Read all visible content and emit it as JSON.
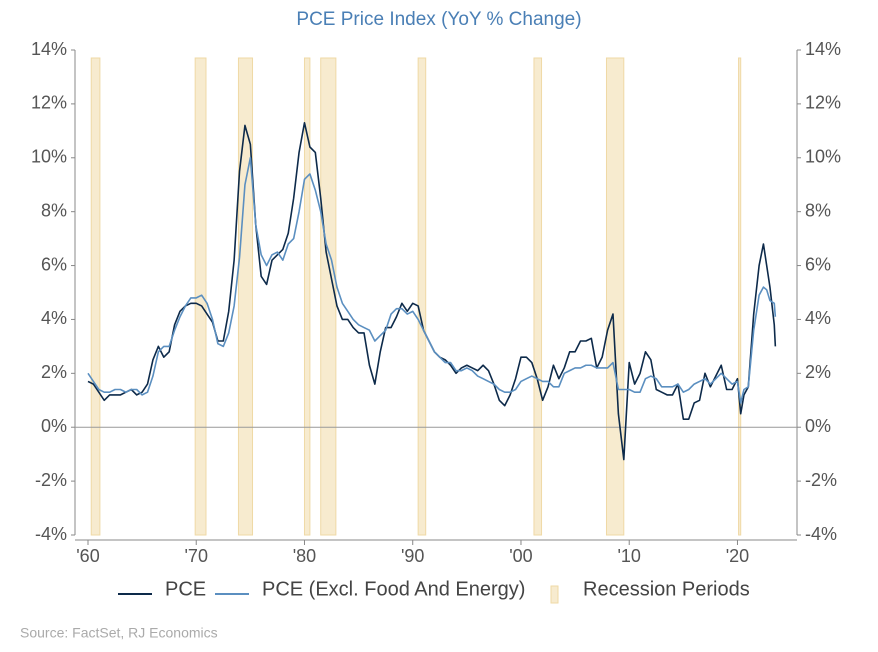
{
  "chart_data": {
    "type": "line",
    "title": "PCE Price Index (YoY % Change)",
    "source": "Source: FactSet, RJ Economics",
    "xlim": [
      1958.8,
      2025.5
    ],
    "xticks": [
      {
        "value": 1960,
        "label": "'60"
      },
      {
        "value": 1970,
        "label": "'70"
      },
      {
        "value": 1980,
        "label": "'80"
      },
      {
        "value": 1990,
        "label": "'90"
      },
      {
        "value": 2000,
        "label": "'00"
      },
      {
        "value": 2010,
        "label": "'10"
      },
      {
        "value": 2020,
        "label": "'20"
      }
    ],
    "ylim": [
      -4,
      14
    ],
    "yticks": [
      {
        "value": -4,
        "label": "-4%"
      },
      {
        "value": -2,
        "label": "-2%"
      },
      {
        "value": 0,
        "label": "0%"
      },
      {
        "value": 2,
        "label": "2%"
      },
      {
        "value": 4,
        "label": "4%"
      },
      {
        "value": 6,
        "label": "6%"
      },
      {
        "value": 8,
        "label": "8%"
      },
      {
        "value": 10,
        "label": "10%"
      },
      {
        "value": 12,
        "label": "12%"
      },
      {
        "value": 14,
        "label": "14%"
      }
    ],
    "y2lim": [
      -4,
      14
    ],
    "y2ticks": [
      {
        "value": -4,
        "label": "-4%"
      },
      {
        "value": -2,
        "label": "-2%"
      },
      {
        "value": 0,
        "label": "0%"
      },
      {
        "value": 2,
        "label": "2%"
      },
      {
        "value": 4,
        "label": "4%"
      },
      {
        "value": 6,
        "label": "6%"
      },
      {
        "value": 8,
        "label": "8%"
      },
      {
        "value": 10,
        "label": "10%"
      },
      {
        "value": 12,
        "label": "12%"
      },
      {
        "value": 14,
        "label": "14%"
      }
    ],
    "grid": false,
    "x": [
      1960,
      1960.5,
      1961,
      1961.5,
      1962,
      1962.5,
      1963,
      1963.5,
      1964,
      1964.5,
      1965,
      1965.5,
      1966,
      1966.5,
      1967,
      1967.5,
      1968,
      1968.5,
      1969,
      1969.5,
      1970,
      1970.5,
      1971,
      1971.5,
      1972,
      1972.5,
      1973,
      1973.5,
      1974,
      1974.5,
      1975,
      1975.5,
      1976,
      1976.5,
      1977,
      1977.5,
      1978,
      1978.5,
      1979,
      1979.5,
      1980,
      1980.5,
      1981,
      1981.5,
      1982,
      1982.5,
      1983,
      1983.5,
      1984,
      1984.5,
      1985,
      1985.5,
      1986,
      1986.5,
      1987,
      1987.5,
      1988,
      1988.5,
      1989,
      1989.5,
      1990,
      1990.5,
      1991,
      1991.5,
      1992,
      1992.5,
      1993,
      1993.5,
      1994,
      1994.5,
      1995,
      1995.5,
      1996,
      1996.5,
      1997,
      1997.5,
      1998,
      1998.5,
      1999,
      1999.5,
      2000,
      2000.5,
      2001,
      2001.5,
      2002,
      2002.5,
      2003,
      2003.5,
      2004,
      2004.5,
      2005,
      2005.5,
      2006,
      2006.5,
      2007,
      2007.5,
      2008,
      2008.5,
      2009,
      2009.5,
      2010,
      2010.5,
      2011,
      2011.5,
      2012,
      2012.5,
      2013,
      2013.5,
      2014,
      2014.5,
      2015,
      2015.5,
      2016,
      2016.5,
      2017,
      2017.5,
      2018,
      2018.5,
      2019,
      2019.5,
      2020,
      2020.3,
      2020.6,
      2021,
      2021.5,
      2022,
      2022.4,
      2022.7,
      2023,
      2023.4,
      2023.5
    ],
    "series": [
      {
        "name": "PCE",
        "color": "#0d2a4a",
        "values": [
          1.7,
          1.6,
          1.3,
          1.0,
          1.2,
          1.2,
          1.2,
          1.3,
          1.4,
          1.2,
          1.3,
          1.6,
          2.5,
          3.0,
          2.6,
          2.8,
          3.8,
          4.3,
          4.5,
          4.6,
          4.6,
          4.5,
          4.2,
          3.9,
          3.2,
          3.2,
          4.3,
          6.2,
          9.5,
          11.2,
          10.5,
          7.5,
          5.6,
          5.3,
          6.2,
          6.4,
          6.6,
          7.2,
          8.5,
          10.2,
          11.3,
          10.4,
          10.2,
          8.5,
          6.5,
          5.5,
          4.5,
          4.0,
          4.0,
          3.7,
          3.5,
          3.5,
          2.3,
          1.6,
          2.8,
          3.7,
          3.7,
          4.1,
          4.6,
          4.3,
          4.6,
          4.5,
          3.6,
          3.2,
          2.8,
          2.6,
          2.5,
          2.3,
          2.0,
          2.2,
          2.3,
          2.2,
          2.1,
          2.3,
          2.1,
          1.6,
          1.0,
          0.8,
          1.2,
          1.8,
          2.6,
          2.6,
          2.4,
          1.8,
          1.0,
          1.5,
          2.3,
          1.8,
          2.2,
          2.8,
          2.8,
          3.2,
          3.2,
          3.3,
          2.2,
          2.6,
          3.6,
          4.2,
          0.5,
          -1.2,
          2.4,
          1.6,
          2.0,
          2.8,
          2.5,
          1.4,
          1.3,
          1.2,
          1.2,
          1.6,
          0.3,
          0.3,
          0.9,
          1.0,
          2.0,
          1.5,
          1.9,
          2.3,
          1.4,
          1.4,
          1.8,
          0.5,
          1.2,
          1.5,
          4.2,
          6.0,
          6.8,
          6.0,
          5.2,
          3.8,
          3.0
        ]
      },
      {
        "name": "PCE (Excl. Food And Energy)",
        "color": "#5b8fc0",
        "values": [
          2.0,
          1.7,
          1.4,
          1.3,
          1.3,
          1.4,
          1.4,
          1.3,
          1.4,
          1.4,
          1.2,
          1.3,
          1.9,
          2.8,
          3.0,
          3.0,
          3.6,
          4.1,
          4.5,
          4.8,
          4.8,
          4.9,
          4.6,
          4.0,
          3.1,
          3.0,
          3.5,
          4.5,
          6.3,
          9.0,
          10.0,
          7.5,
          6.4,
          6.0,
          6.4,
          6.5,
          6.2,
          6.8,
          7.0,
          8.0,
          9.2,
          9.4,
          8.8,
          8.0,
          6.8,
          6.2,
          5.2,
          4.6,
          4.3,
          4.0,
          3.8,
          3.7,
          3.6,
          3.2,
          3.4,
          3.6,
          4.2,
          4.4,
          4.4,
          4.2,
          4.3,
          4.0,
          3.6,
          3.2,
          2.8,
          2.6,
          2.4,
          2.4,
          2.1,
          2.1,
          2.2,
          2.1,
          1.9,
          1.8,
          1.7,
          1.6,
          1.4,
          1.3,
          1.3,
          1.4,
          1.7,
          1.8,
          1.9,
          1.8,
          1.7,
          1.7,
          1.5,
          1.5,
          2.0,
          2.1,
          2.2,
          2.2,
          2.3,
          2.3,
          2.2,
          2.2,
          2.2,
          2.4,
          1.4,
          1.4,
          1.4,
          1.3,
          1.3,
          1.8,
          1.9,
          1.8,
          1.5,
          1.5,
          1.5,
          1.6,
          1.3,
          1.4,
          1.6,
          1.7,
          1.8,
          1.6,
          1.8,
          2.0,
          1.8,
          1.6,
          1.7,
          0.9,
          1.4,
          1.5,
          3.6,
          4.9,
          5.2,
          5.1,
          4.7,
          4.6,
          4.1
        ]
      }
    ],
    "recessions": {
      "name": "Recession Periods",
      "color": "#f7ebcf",
      "periods": [
        [
          1960.3,
          1961.1
        ],
        [
          1969.9,
          1970.9
        ],
        [
          1973.9,
          1975.2
        ],
        [
          1980.0,
          1980.5
        ],
        [
          1981.5,
          1982.9
        ],
        [
          1990.5,
          1991.2
        ],
        [
          2001.2,
          2001.9
        ],
        [
          2007.9,
          2009.5
        ],
        [
          2020.1,
          2020.3
        ]
      ]
    }
  }
}
